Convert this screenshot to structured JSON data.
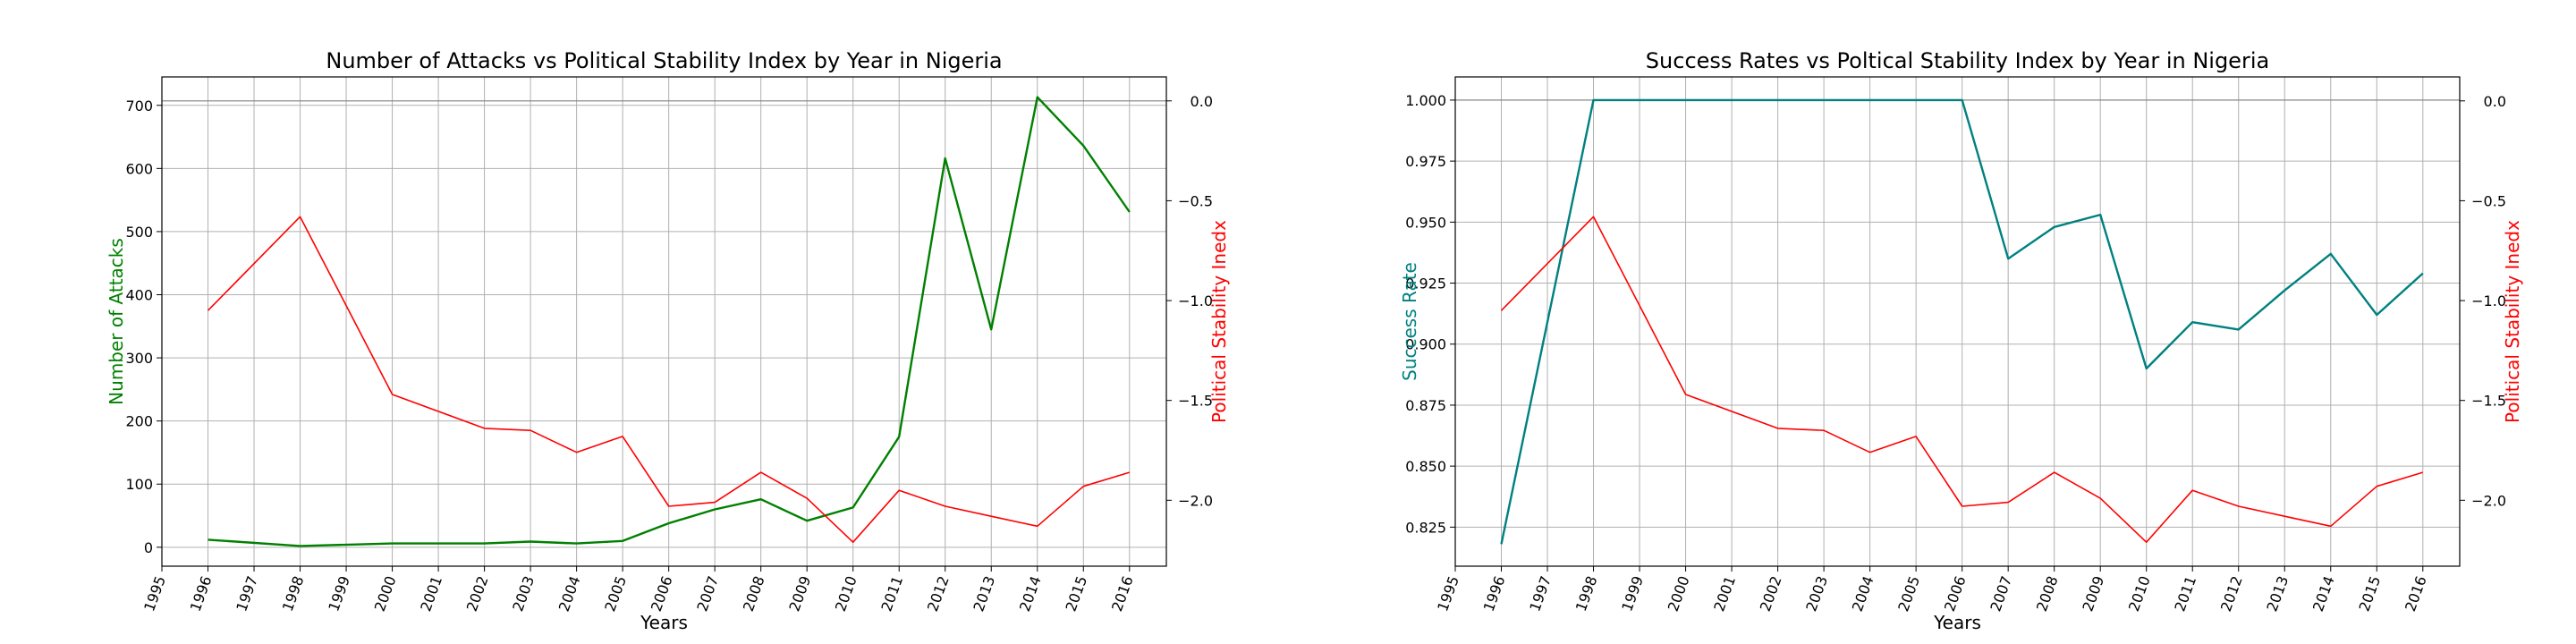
{
  "chart_data": [
    {
      "type": "line",
      "title": "Number of Attacks vs Political Stability Index by Year in Nigeria",
      "xlabel": "Years",
      "ylabel": "Number of Attacks",
      "y2label": "Political Stability Inedx",
      "x_ticks": [
        "1995",
        "1996",
        "1997",
        "1998",
        "1999",
        "2000",
        "2001",
        "2002",
        "2003",
        "2004",
        "2005",
        "2006",
        "2007",
        "2008",
        "2009",
        "2010",
        "2011",
        "2012",
        "2013",
        "2014",
        "2015",
        "2016"
      ],
      "xlim": [
        1995,
        2016.8
      ],
      "ylim": [
        -30,
        745
      ],
      "y_ticks": [
        "0",
        "100",
        "200",
        "300",
        "400",
        "500",
        "600",
        "700"
      ],
      "y2lim": [
        -2.33,
        0.12
      ],
      "y2_ticks": [
        "0.0",
        "−0.5",
        "−1.0",
        "−1.5",
        "−2.0"
      ],
      "grid": true,
      "series": [
        {
          "axis": "left",
          "color": "#008000",
          "x": [
            1996,
            1998,
            2000,
            2002,
            2003,
            2004,
            2005,
            2006,
            2007,
            2008,
            2009,
            2010,
            2011,
            2012,
            2013,
            2014,
            2015,
            2016
          ],
          "values": [
            12,
            2,
            6,
            6,
            9,
            6,
            10,
            38,
            60,
            76,
            42,
            63,
            175,
            616,
            345,
            713,
            636,
            531
          ]
        },
        {
          "axis": "right",
          "color": "#ff0000",
          "x": [
            1996,
            1998,
            2000,
            2002,
            2003,
            2004,
            2005,
            2006,
            2007,
            2008,
            2009,
            2010,
            2011,
            2012,
            2013,
            2014,
            2015,
            2016
          ],
          "values": [
            -1.05,
            -0.58,
            -1.47,
            -1.64,
            -1.65,
            -1.76,
            -1.68,
            -2.03,
            -2.01,
            -1.86,
            -1.99,
            -2.21,
            -1.95,
            -2.03,
            -2.08,
            -2.13,
            -1.93,
            -1.86
          ]
        }
      ],
      "ref_line": {
        "axis": "right",
        "value": 0
      }
    },
    {
      "type": "line",
      "title": "Success Rates vs Poltical Stability Index by Year in Nigeria",
      "xlabel": "Years",
      "ylabel": "Success Rate",
      "y2label": "Political Stability Inedx",
      "x_ticks": [
        "1995",
        "1996",
        "1997",
        "1998",
        "1999",
        "2000",
        "2001",
        "2002",
        "2003",
        "2004",
        "2005",
        "2006",
        "2007",
        "2008",
        "2009",
        "2010",
        "2011",
        "2012",
        "2013",
        "2014",
        "2015",
        "2016"
      ],
      "xlim": [
        1995,
        2016.8
      ],
      "ylim": [
        0.809,
        1.0095
      ],
      "y_ticks": [
        "0.825",
        "0.850",
        "0.875",
        "0.900",
        "0.925",
        "0.950",
        "0.975",
        "1.000"
      ],
      "y2lim": [
        -2.33,
        0.12
      ],
      "y2_ticks": [
        "0.0",
        "−0.5",
        "−1.0",
        "−1.5",
        "−2.0"
      ],
      "grid": true,
      "series": [
        {
          "axis": "left",
          "color": "#008080",
          "x": [
            1996,
            1998,
            2000,
            2002,
            2004,
            2006,
            2007,
            2008,
            2009,
            2010,
            2011,
            2012,
            2013,
            2014,
            2015,
            2016
          ],
          "values": [
            0.818,
            1.0,
            1.0,
            1.0,
            1.0,
            1.0,
            0.935,
            0.948,
            0.953,
            0.89,
            0.909,
            0.906,
            0.922,
            0.937,
            0.912,
            0.929
          ]
        },
        {
          "axis": "right",
          "color": "#ff0000",
          "x": [
            1996,
            1998,
            2000,
            2002,
            2003,
            2004,
            2005,
            2006,
            2007,
            2008,
            2009,
            2010,
            2011,
            2012,
            2013,
            2014,
            2015,
            2016
          ],
          "values": [
            -1.05,
            -0.58,
            -1.47,
            -1.64,
            -1.65,
            -1.76,
            -1.68,
            -2.03,
            -2.01,
            -1.86,
            -1.99,
            -2.21,
            -1.95,
            -2.03,
            -2.08,
            -2.13,
            -1.93,
            -1.86
          ]
        }
      ],
      "ref_line": {
        "axis": "left",
        "value": 1.0
      }
    }
  ]
}
